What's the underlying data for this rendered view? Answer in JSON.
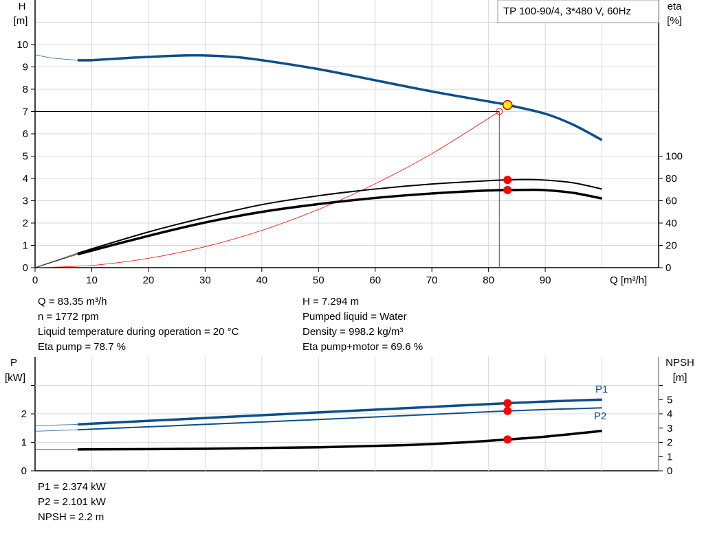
{
  "chart_data": [
    {
      "type": "line",
      "title": "TP 100-90/4, 3*480 V, 60Hz",
      "xlabel": "Q [m³/h]",
      "ylabel_left": [
        "H",
        "[m]"
      ],
      "ylabel_right": [
        "eta",
        "[%]"
      ],
      "xlim": [
        0,
        110
      ],
      "ylim_left": [
        0,
        12
      ],
      "ylim_right": [
        0,
        240
      ],
      "x_ticks": [
        0,
        10,
        20,
        30,
        40,
        50,
        60,
        70,
        80,
        90
      ],
      "y_ticks_left": [
        0,
        1,
        2,
        3,
        4,
        5,
        6,
        7,
        8,
        9,
        10
      ],
      "y_ticks_right": [
        0,
        20,
        40,
        60,
        80,
        100
      ],
      "grid": true,
      "legend": "top-right",
      "series": [
        {
          "key": "H",
          "axis": "left",
          "color": "#0b4f8a",
          "x": [
            0,
            3,
            7.5,
            10,
            15,
            20,
            28,
            35,
            40,
            50,
            60,
            70,
            80,
            83.35,
            90,
            95,
            100
          ],
          "y": [
            9.55,
            9.4,
            9.3,
            9.3,
            9.38,
            9.45,
            9.52,
            9.45,
            9.3,
            8.9,
            8.4,
            7.9,
            7.45,
            7.294,
            6.9,
            6.4,
            5.72
          ]
        },
        {
          "key": "eta_pump",
          "axis": "right",
          "color": "#000000",
          "x": [
            0,
            7.5,
            20,
            30,
            40,
            50,
            60,
            70,
            80,
            83.35,
            87,
            90,
            95,
            100
          ],
          "y": [
            0,
            13,
            32,
            45,
            56.5,
            64.5,
            70.5,
            75,
            78,
            78.7,
            79,
            78.5,
            76,
            70.5
          ]
        },
        {
          "key": "eta_pump_motor",
          "axis": "right",
          "color": "#000000",
          "x": [
            0,
            7.5,
            20,
            30,
            40,
            50,
            60,
            70,
            80,
            83.35,
            87,
            90,
            95,
            100
          ],
          "y": [
            0,
            12,
            28.5,
            40.5,
            50,
            57,
            62.5,
            66.5,
            69.2,
            69.6,
            69.8,
            69.5,
            67,
            62
          ]
        },
        {
          "key": "system",
          "axis": "left",
          "color": "#ff0000",
          "x": [
            0,
            10,
            20,
            30,
            40,
            50,
            60,
            70,
            81.9
          ],
          "y": [
            0,
            0.1,
            0.42,
            0.94,
            1.67,
            2.61,
            3.76,
            5.11,
            7.0
          ]
        }
      ],
      "duty_point": {
        "q": 81.9,
        "h": 7.0
      },
      "operating_point": {
        "q": 83.35,
        "h": 7.294,
        "eta_pump": 78.7,
        "eta_pump_motor": 69.6
      }
    },
    {
      "type": "line",
      "ylabel_left": [
        "P",
        "[kW]"
      ],
      "ylabel_right": [
        "NPSH",
        "[m]"
      ],
      "xlim": [
        0,
        110
      ],
      "ylim_left": [
        0,
        4
      ],
      "ylim_right": [
        0,
        8
      ],
      "y_ticks_left": [
        0,
        1,
        2
      ],
      "y_ticks_right": [
        0,
        1,
        2,
        3,
        4,
        5
      ],
      "grid": true,
      "series": [
        {
          "key": "P1",
          "name": "P1",
          "axis": "left",
          "color": "#0b4f8a",
          "x": [
            0,
            7.5,
            50,
            83.35,
            100
          ],
          "y": [
            1.58,
            1.63,
            2.05,
            2.374,
            2.5
          ]
        },
        {
          "key": "P2",
          "name": "P2",
          "axis": "left",
          "color": "#0b4f8a",
          "x": [
            0,
            7.5,
            50,
            83.35,
            100
          ],
          "y": [
            1.39,
            1.44,
            1.8,
            2.101,
            2.21
          ]
        },
        {
          "key": "NPSH",
          "axis": "right",
          "color": "#000000",
          "x": [
            0,
            7.5,
            30,
            50,
            65,
            75,
            83.35,
            90,
            100
          ],
          "y": [
            1.5,
            1.5,
            1.55,
            1.65,
            1.8,
            1.98,
            2.2,
            2.4,
            2.8
          ]
        }
      ],
      "operating_point": {
        "q": 83.35,
        "P1": 2.374,
        "P2": 2.101,
        "NPSH": 2.2
      }
    }
  ],
  "info": {
    "left": [
      "Q = 83.35 m³/h",
      "n = 1772 rpm",
      "Liquid temperature during operation = 20 °C",
      "Eta pump = 78.7 %"
    ],
    "right": [
      "H = 7.294 m",
      "Pumped liquid = Water",
      "Density = 998.2 kg/m³",
      "Eta pump+motor = 69.6 %"
    ],
    "bottom": [
      "P1 = 2.374 kW",
      "P2 = 2.101 kW",
      "NPSH = 2.2 m"
    ]
  }
}
